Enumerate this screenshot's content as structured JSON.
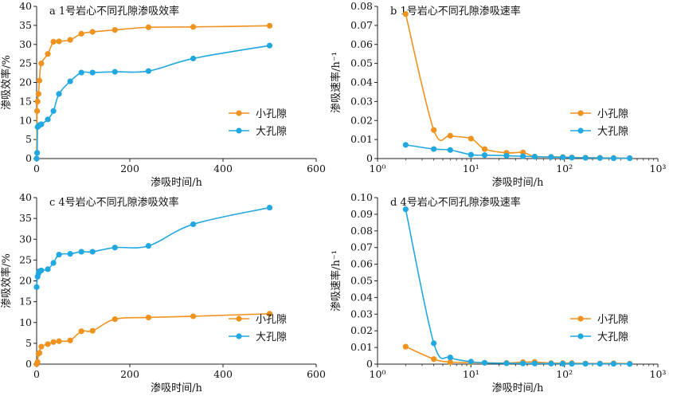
{
  "colors": {
    "small": "#f0921e",
    "large": "#21a8e0",
    "axis": "#222222"
  },
  "chart_data": [
    {
      "id": "a",
      "type": "line",
      "title": "a 1号岩心不同孔隙渗吸效率",
      "xlabel": "渗吸时间/h",
      "ylabel": "渗吸效率/%",
      "xscale": "linear",
      "xlim": [
        0,
        600
      ],
      "ylim": [
        0,
        40
      ],
      "xticks": [
        "0",
        "200",
        "400",
        "600"
      ],
      "yticks": [
        "0",
        "5",
        "10",
        "15",
        "20",
        "25",
        "30",
        "35",
        "40"
      ],
      "legend": "right",
      "series": [
        {
          "name": "小孔隙",
          "color": "small",
          "x": [
            0,
            1,
            2,
            4,
            6,
            10,
            24,
            36,
            48,
            72,
            96,
            120,
            168,
            240,
            336,
            500
          ],
          "y": [
            0,
            12.5,
            15,
            17,
            20.5,
            25,
            27.5,
            30.7,
            30.8,
            31.2,
            32.8,
            33.3,
            33.8,
            34.5,
            34.6,
            34.9
          ]
        },
        {
          "name": "大孔隙",
          "color": "large",
          "x": [
            0,
            1,
            2,
            4,
            6,
            10,
            24,
            36,
            48,
            72,
            96,
            120,
            168,
            240,
            336,
            500
          ],
          "y": [
            0,
            1.5,
            8.3,
            8.6,
            8.8,
            9,
            10.3,
            12.5,
            17,
            20.3,
            22.6,
            22.6,
            22.8,
            23,
            26.3,
            29.7
          ]
        }
      ]
    },
    {
      "id": "b",
      "type": "line",
      "title": "b 1号岩心不同孔隙渗吸速率",
      "xlabel": "渗吸时间/h",
      "ylabel": "渗吸速率/h⁻¹",
      "xscale": "log",
      "xlim": [
        1,
        1000
      ],
      "ylim": [
        0,
        0.08
      ],
      "xticks": [
        "10⁰",
        "10¹",
        "10²",
        "10³"
      ],
      "yticks": [
        "0",
        "0.01",
        "0.02",
        "0.03",
        "0.04",
        "0.05",
        "0.06",
        "0.07",
        "0.08"
      ],
      "legend": "right",
      "series": [
        {
          "name": "小孔隙",
          "color": "small",
          "x": [
            2,
            4,
            6,
            10,
            14,
            24,
            36,
            48,
            72,
            96,
            120,
            168,
            240,
            336,
            500
          ],
          "y": [
            0.076,
            0.015,
            0.012,
            0.0105,
            0.005,
            0.003,
            0.0032,
            0.001,
            0.0009,
            0.0008,
            0.0006,
            0.0005,
            0.0004,
            0.0003,
            0.0002
          ]
        },
        {
          "name": "大孔隙",
          "color": "large",
          "x": [
            2,
            4,
            6,
            10,
            14,
            24,
            36,
            48,
            72,
            96,
            120,
            168,
            240,
            336,
            500
          ],
          "y": [
            0.0072,
            0.005,
            0.0045,
            0.002,
            0.0018,
            0.0015,
            0.0012,
            0.001,
            0.0008,
            0.0007,
            0.0005,
            0.0004,
            0.0003,
            0.0002,
            0.0002
          ]
        }
      ]
    },
    {
      "id": "c",
      "type": "line",
      "title": "c 4号岩心不同孔隙渗吸效率",
      "xlabel": "渗吸时间/h",
      "ylabel": "渗吸效率/%",
      "xscale": "linear",
      "xlim": [
        0,
        600
      ],
      "ylim": [
        0,
        40
      ],
      "xticks": [
        "0",
        "200",
        "400",
        "600"
      ],
      "yticks": [
        "0",
        "5",
        "10",
        "15",
        "20",
        "25",
        "30",
        "35",
        "40"
      ],
      "legend": "right",
      "series": [
        {
          "name": "小孔隙",
          "color": "small",
          "x": [
            0,
            2,
            4,
            6,
            10,
            24,
            36,
            48,
            72,
            96,
            120,
            168,
            240,
            336,
            500
          ],
          "y": [
            0,
            0.5,
            2.5,
            2.7,
            4.2,
            4.8,
            5.3,
            5.5,
            5.7,
            7.9,
            8,
            10.8,
            11.2,
            11.5,
            12.1
          ]
        },
        {
          "name": "大孔隙",
          "color": "large",
          "x": [
            0,
            2,
            4,
            6,
            10,
            24,
            36,
            48,
            72,
            96,
            120,
            168,
            240,
            336,
            500
          ],
          "y": [
            18.5,
            21,
            21.8,
            22.3,
            22.5,
            22.8,
            24.3,
            26.3,
            26.5,
            27,
            27,
            28,
            28.4,
            33.6,
            37.6
          ]
        }
      ]
    },
    {
      "id": "d",
      "type": "line",
      "title": "d 4号岩心不同孔隙渗吸速率",
      "xlabel": "渗吸时间/h",
      "ylabel": "渗吸速率/h⁻¹",
      "xscale": "log",
      "xlim": [
        1,
        1000
      ],
      "ylim": [
        0,
        0.1
      ],
      "xticks": [
        "10⁰",
        "10¹",
        "10²",
        "10³"
      ],
      "yticks": [
        "0",
        "0.01",
        "0.02",
        "0.03",
        "0.04",
        "0.05",
        "0.06",
        "0.07",
        "0.08",
        "0.09",
        "0.10"
      ],
      "legend": "right",
      "series": [
        {
          "name": "小孔隙",
          "color": "small",
          "x": [
            2,
            4,
            6,
            10,
            14,
            24,
            36,
            48,
            72,
            96,
            120,
            168,
            240,
            336,
            500
          ],
          "y": [
            0.0105,
            0.003,
            0.0012,
            0.001,
            0.0008,
            0.0007,
            0.0012,
            0.0013,
            0.0006,
            0.0006,
            0.0006,
            0.0004,
            0.0004,
            0.0005,
            0.0003
          ]
        },
        {
          "name": "大孔隙",
          "color": "large",
          "x": [
            2,
            4,
            6,
            10,
            14,
            24,
            36,
            48,
            72,
            96,
            120,
            168,
            240,
            336,
            500
          ],
          "y": [
            0.093,
            0.0125,
            0.004,
            0.0015,
            0.0008,
            0.0005,
            0.0004,
            0.0004,
            0.0003,
            0.0003,
            0.0002,
            0.0002,
            0.0002,
            0.0002,
            0.0001
          ]
        }
      ]
    }
  ]
}
